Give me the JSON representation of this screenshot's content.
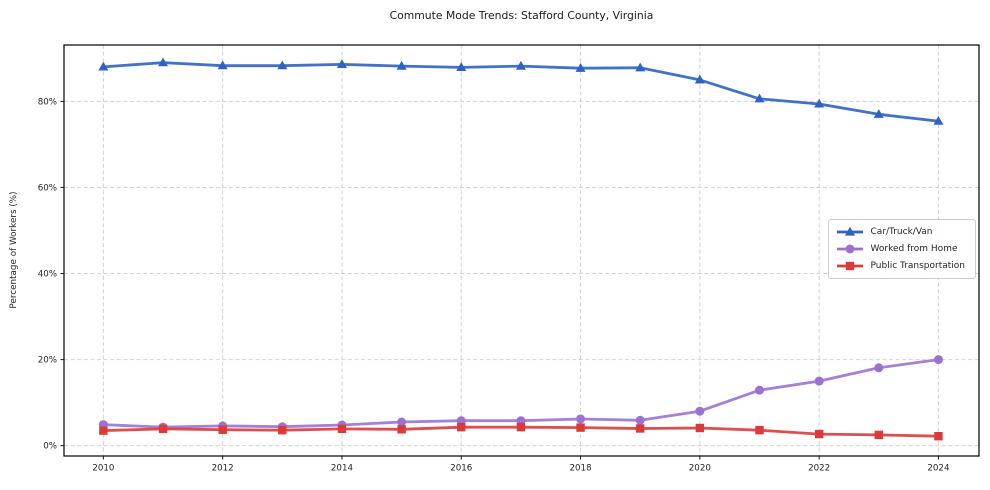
{
  "title": "Commute Mode Trends: Stafford County, Virginia",
  "chart_data": {
    "type": "line",
    "title": "Commute Mode Trends: Stafford County, Virginia",
    "xlabel": "",
    "ylabel": "Percentage of Workers (%)",
    "x": [
      2010,
      2011,
      2012,
      2013,
      2014,
      2015,
      2016,
      2017,
      2018,
      2019,
      2020,
      2021,
      2022,
      2023,
      2024
    ],
    "series": [
      {
        "name": "Car/Truck/Van",
        "color": "#2e62c4",
        "marker": "triangle",
        "values": [
          88.0,
          89.0,
          88.3,
          88.3,
          88.6,
          88.2,
          87.9,
          88.2,
          87.7,
          87.8,
          85.0,
          80.6,
          79.4,
          77.0,
          75.4
        ]
      },
      {
        "name": "Worked from Home",
        "color": "#9b72d2",
        "marker": "circle",
        "values": [
          4.9,
          4.3,
          4.6,
          4.4,
          4.8,
          5.5,
          5.8,
          5.8,
          6.2,
          5.9,
          8.0,
          12.9,
          15.0,
          18.1,
          20.0
        ]
      },
      {
        "name": "Public Transportation",
        "color": "#d93b3b",
        "marker": "square",
        "values": [
          3.5,
          3.9,
          3.7,
          3.6,
          3.9,
          3.8,
          4.3,
          4.3,
          4.2,
          4.0,
          4.1,
          3.6,
          2.7,
          2.5,
          2.2
        ]
      }
    ],
    "xticks": [
      2010,
      2012,
      2014,
      2016,
      2018,
      2020,
      2022,
      2024
    ],
    "xtick_labels": [
      "2010",
      "2012",
      "2014",
      "2016",
      "2018",
      "2020",
      "2022",
      "2024"
    ],
    "yticks": [
      0,
      20,
      40,
      60,
      80
    ],
    "ytick_labels": [
      "0%",
      "20%",
      "40%",
      "60%",
      "80%"
    ],
    "xlim": [
      2009.34,
      2024.68
    ],
    "ylim": [
      -2.4,
      93.1
    ],
    "grid": true,
    "grid_color": "#d3d3d3",
    "axis_color": "#000000",
    "legend_position": "center-right"
  }
}
